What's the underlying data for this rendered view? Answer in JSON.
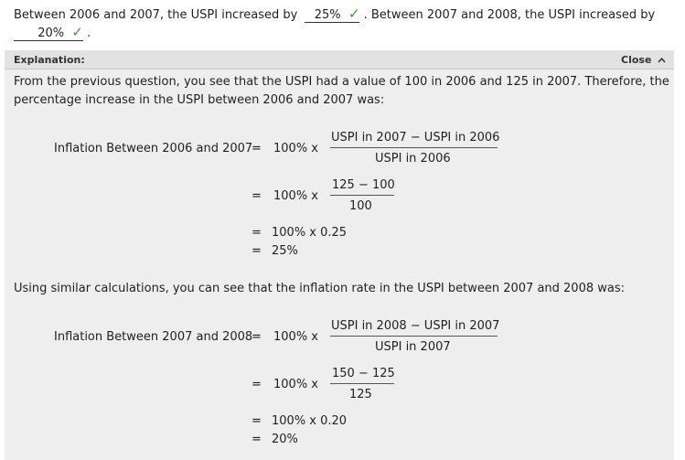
{
  "question": {
    "part1": "Between 2006 and 2007, the USPI increased by",
    "answer1": "25%",
    "part2": ". Between 2007 and 2008, the USPI increased by",
    "answer2": "20%",
    "part3": "."
  },
  "explanation": {
    "header": "Explanation:",
    "close_label": "Close",
    "intro_line1": "From the previous question, you see that the USPI had a value of 100 in 2006 and 125 in 2007. Therefore, the",
    "intro_line2": "percentage increase in the USPI between 2006 and 2007 was:",
    "eq1": {
      "label": "Inflation Between 2006 and 2007",
      "eq": "=",
      "mult": "100% x",
      "num": "USPI in 2007 − USPI in 2006",
      "den": "USPI in 2006",
      "num2": "125 − 100",
      "den2": "100",
      "step3": "100% x 0.25",
      "result": "25%"
    },
    "middle": "Using similar calculations, you can see that the inflation rate in the USPI between 2007 and 2008 was:",
    "eq2": {
      "label": "Inflation Between 2007 and 2008",
      "eq": "=",
      "mult": "100% x",
      "num": "USPI in 2008 − USPI in 2007",
      "den": "USPI in 2007",
      "num2": "150 − 125",
      "den2": "125",
      "step3": "100% x 0.20",
      "result": "20%"
    }
  },
  "icons": {
    "check": "checkmark-icon",
    "close": "chevron-up-icon"
  },
  "colors": {
    "check": "#3c9a2e",
    "panel_bg": "#eeeeee",
    "header_bg": "#e2e2e2"
  }
}
